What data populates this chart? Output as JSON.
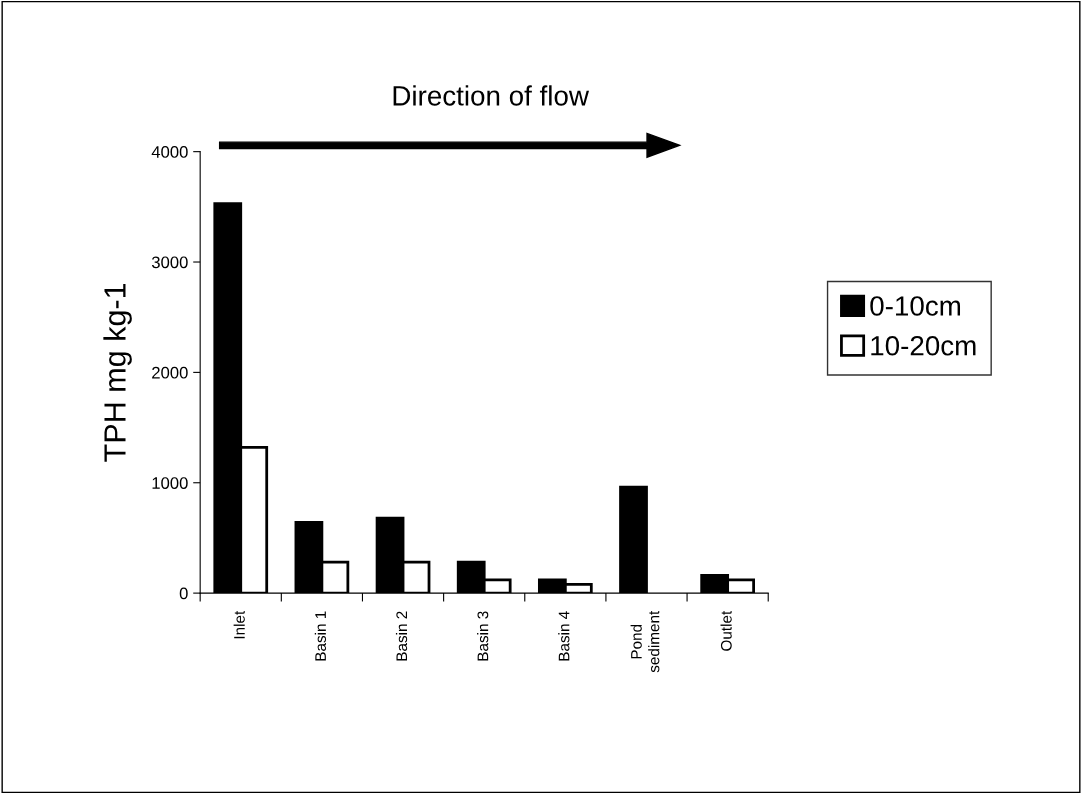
{
  "chart_data": {
    "type": "bar",
    "ylabel": "TPH mg kg-1",
    "categories": [
      "Inlet",
      "Basin 1",
      "Basin 2",
      "Basin 3",
      "Basin 4",
      "Pond\nsediment",
      "Outlet"
    ],
    "series": [
      {
        "name": "0-10cm",
        "color": "#000000",
        "values": [
          3530,
          640,
          680,
          280,
          120,
          960,
          160
        ]
      },
      {
        "name": "10-20cm",
        "color": "#ffffff",
        "values": [
          1320,
          280,
          280,
          120,
          80,
          null,
          120
        ]
      }
    ],
    "ylim": [
      0,
      4000
    ],
    "yticks": [
      0,
      1000,
      2000,
      3000,
      4000
    ],
    "annotations": [
      "Direction of flow"
    ],
    "grid": false,
    "legend": "right"
  }
}
